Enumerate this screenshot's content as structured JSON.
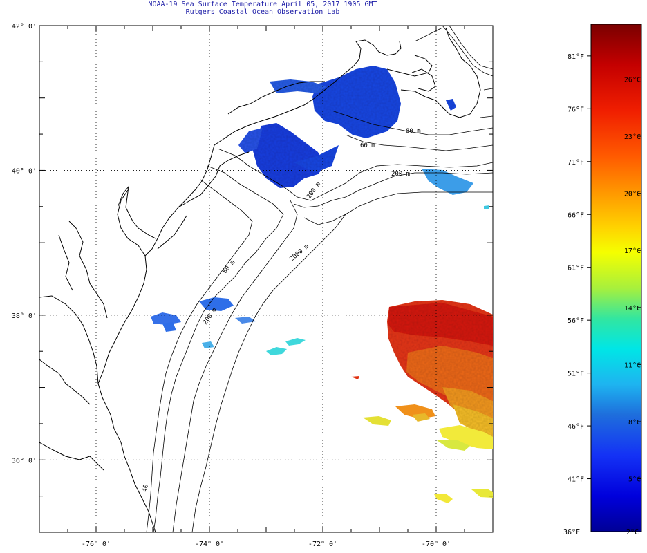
{
  "header": {
    "title": "NOAA-19 Sea Surface Temperature April 05, 2017 1905 GMT",
    "subtitle": "Rutgers Coastal Ocean Observation Lab"
  },
  "map": {
    "lat_labels": [
      "42° 0'",
      "40° 0'",
      "38° 0'",
      "36° 0'"
    ],
    "lon_labels": [
      "-76° 0'",
      "-74° 0'",
      "-72° 0'",
      "-70° 0'"
    ],
    "lat_values": [
      42,
      40,
      38,
      36
    ],
    "lon_values": [
      -76,
      -74,
      -72,
      -70
    ],
    "lat_range": [
      35,
      42
    ],
    "lon_range": [
      -77,
      -69
    ],
    "grid": "dotted",
    "isobath_labels": [
      "60 m",
      "80 m",
      "200 m",
      "200 m",
      "2000 m",
      "60 m",
      "200 m",
      "40"
    ]
  },
  "colorbar": {
    "top_value_f": 84,
    "bottom_value_f": 36,
    "bottom_f_label": "36°F",
    "bottom_c_label": "2°C",
    "f_labels": [
      "81°F",
      "76°F",
      "71°F",
      "66°F",
      "61°F",
      "56°F",
      "51°F",
      "46°F",
      "41°F"
    ],
    "c_labels": [
      "26°C",
      "23°C",
      "20°C",
      "17°C",
      "14°C",
      "11°C",
      "8°C",
      "5°C"
    ],
    "colors": [
      "#7a0000",
      "#c40000",
      "#f01e00",
      "#ff5a00",
      "#ff9600",
      "#ffd200",
      "#f5ff00",
      "#a8f03c",
      "#32e6a0",
      "#00e6e6",
      "#1eb4f0",
      "#1e6edc",
      "#1432f5",
      "#0000dc",
      "#000096"
    ]
  },
  "colors": {
    "title": "#1a1aa6",
    "coast": "#000000",
    "cold": "#1d3de8",
    "cool": "#3fc8e0",
    "warm": "#e03010",
    "mid": "#f58c1e"
  }
}
